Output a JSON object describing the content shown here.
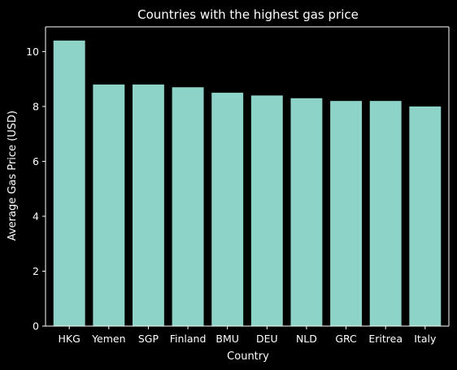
{
  "chart_data": {
    "type": "bar",
    "title": "Countries with the highest gas price",
    "xlabel": "Country",
    "ylabel": "Average Gas Price (USD)",
    "categories": [
      "HKG",
      "Yemen",
      "SGP",
      "Finland",
      "BMU",
      "DEU",
      "NLD",
      "GRC",
      "Eritrea",
      "Italy"
    ],
    "values": [
      10.4,
      8.8,
      8.8,
      8.7,
      8.5,
      8.4,
      8.3,
      8.2,
      8.2,
      8.0
    ],
    "ylim": [
      0,
      10.9
    ],
    "yticks": [
      0,
      2,
      4,
      6,
      8,
      10
    ],
    "grid": false,
    "legend": "none",
    "colors": {
      "background": "#000000",
      "bar": "#8dd3c7",
      "axis": "#ffffff",
      "text": "#ffffff"
    }
  }
}
